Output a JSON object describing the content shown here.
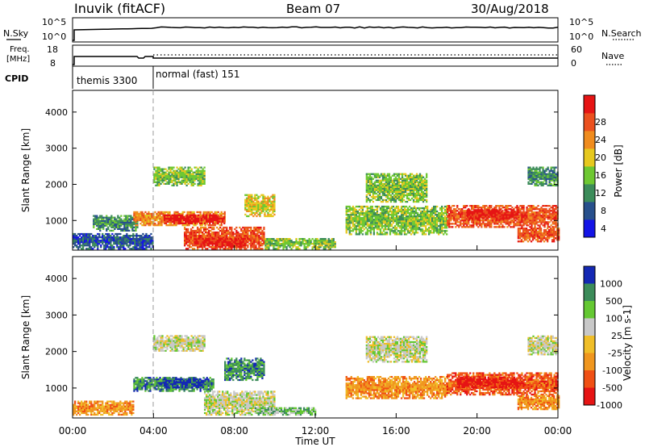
{
  "header": {
    "station": "Inuvik (fitACF)",
    "beam": "Beam 07",
    "date": "30/Aug/2018"
  },
  "params": {
    "nsky_label": "N.Sky",
    "nsearch_label": "N.Search",
    "freq_label_top": "Freq.",
    "freq_label_bottom": "[MHz]",
    "nave_label": "Nave",
    "cpid_label": "CPID",
    "noise_left_ticks": [
      "10^5",
      "10^0"
    ],
    "noise_right_ticks": [
      "10^5",
      "10^0"
    ],
    "freq_left_ticks": [
      "18",
      "8"
    ],
    "freq_right_ticks": [
      "60",
      "0"
    ],
    "cpid_segments": [
      "themis 3300",
      "normal (fast) 151"
    ]
  },
  "colors": {
    "power": [
      "#1414e6",
      "#28508c",
      "#3c8c5a",
      "#6ec832",
      "#e6c81e",
      "#f08c1e",
      "#eb501e",
      "#e61414"
    ],
    "velocity": [
      "#e61414",
      "#f05014",
      "#f0961e",
      "#f0be28",
      "#c8c8c8",
      "#64c832",
      "#3c8c5a",
      "#1428b4"
    ]
  },
  "chart_data": [
    {
      "type": "heatmap",
      "name": "power",
      "ylabel": "Slant Range [km]",
      "xlabel": "Time UT",
      "x_ticks": [
        "00:00",
        "04:00",
        "08:00",
        "12:00",
        "16:00",
        "20:00",
        "00:00"
      ],
      "y_ticks": [
        1000,
        2000,
        3000,
        4000
      ],
      "ylim": [
        180,
        4600
      ],
      "xlim_hours": [
        0,
        24
      ],
      "colorbar_label": "Power [dB]",
      "colorbar_ticks": [
        "4",
        "8",
        "12",
        "16",
        "20",
        "24",
        "28"
      ],
      "regions": [
        {
          "t": [
            0.0,
            4.0
          ],
          "r": [
            200,
            650
          ],
          "level": 1
        },
        {
          "t": [
            1.0,
            3.2
          ],
          "r": [
            700,
            1150
          ],
          "level": 2
        },
        {
          "t": [
            3.0,
            7.5
          ],
          "r": [
            850,
            1250
          ],
          "level": 5
        },
        {
          "t": [
            4.5,
            7.5
          ],
          "r": [
            900,
            1150
          ],
          "level": 7
        },
        {
          "t": [
            5.5,
            9.5
          ],
          "r": [
            200,
            800
          ],
          "level": 6
        },
        {
          "t": [
            6.0,
            8.5
          ],
          "r": [
            250,
            500
          ],
          "level": 7
        },
        {
          "t": [
            4.0,
            6.5
          ],
          "r": [
            1950,
            2450
          ],
          "level": 3
        },
        {
          "t": [
            8.5,
            10.0
          ],
          "r": [
            1100,
            1700
          ],
          "level": 4
        },
        {
          "t": [
            9.5,
            13.0
          ],
          "r": [
            200,
            500
          ],
          "level": 3
        },
        {
          "t": [
            13.5,
            18.5
          ],
          "r": [
            600,
            1400
          ],
          "level": 3
        },
        {
          "t": [
            14.5,
            17.5
          ],
          "r": [
            1500,
            2300
          ],
          "level": 3
        },
        {
          "t": [
            18.5,
            24.0
          ],
          "r": [
            800,
            1400
          ],
          "level": 6
        },
        {
          "t": [
            19.5,
            22.0
          ],
          "r": [
            1000,
            1300
          ],
          "level": 7
        },
        {
          "t": [
            22.0,
            24.0
          ],
          "r": [
            400,
            800
          ],
          "level": 6
        },
        {
          "t": [
            22.5,
            24.0
          ],
          "r": [
            1950,
            2450
          ],
          "level": 2
        }
      ]
    },
    {
      "type": "heatmap",
      "name": "velocity",
      "ylabel": "Slant Range [km]",
      "xlabel": "Time UT",
      "x_ticks": [
        "00:00",
        "04:00",
        "08:00",
        "12:00",
        "16:00",
        "20:00",
        "00:00"
      ],
      "y_ticks": [
        1000,
        2000,
        3000,
        4000
      ],
      "ylim": [
        180,
        4600
      ],
      "xlim_hours": [
        0,
        24
      ],
      "colorbar_label": "Velocity [m s-1]",
      "colorbar_ticks": [
        "1000",
        "500",
        "100",
        "25",
        "-25",
        "-100",
        "-500",
        "-1000"
      ],
      "regions": [
        {
          "t": [
            0.0,
            3.0
          ],
          "r": [
            250,
            650
          ],
          "level": 2
        },
        {
          "t": [
            3.0,
            7.0
          ],
          "r": [
            900,
            1300
          ],
          "level": 6
        },
        {
          "t": [
            4.5,
            6.5
          ],
          "r": [
            1000,
            1250
          ],
          "level": 7
        },
        {
          "t": [
            6.5,
            10.0
          ],
          "r": [
            250,
            900
          ],
          "level": 4
        },
        {
          "t": [
            7.5,
            9.5
          ],
          "r": [
            1200,
            1800
          ],
          "level": 6
        },
        {
          "t": [
            4.0,
            6.5
          ],
          "r": [
            2000,
            2450
          ],
          "level": 4
        },
        {
          "t": [
            9.0,
            12.0
          ],
          "r": [
            250,
            450
          ],
          "level": 5
        },
        {
          "t": [
            13.5,
            18.5
          ],
          "r": [
            700,
            1300
          ],
          "level": 2
        },
        {
          "t": [
            14.5,
            17.5
          ],
          "r": [
            1700,
            2400
          ],
          "level": 4
        },
        {
          "t": [
            18.5,
            24.0
          ],
          "r": [
            800,
            1400
          ],
          "level": 1
        },
        {
          "t": [
            19.0,
            22.0
          ],
          "r": [
            1000,
            1300
          ],
          "level": 0
        },
        {
          "t": [
            22.0,
            24.0
          ],
          "r": [
            400,
            800
          ],
          "level": 2
        },
        {
          "t": [
            22.5,
            24.0
          ],
          "r": [
            1900,
            2400
          ],
          "level": 4
        }
      ]
    }
  ]
}
